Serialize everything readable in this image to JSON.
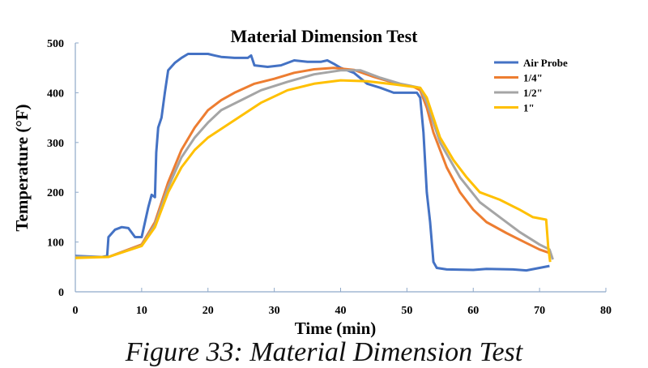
{
  "chart_data": {
    "type": "line",
    "title": "Material Dimension Test",
    "xlabel": "Time (min)",
    "ylabel": "Temperature (°F)",
    "xlim": [
      0,
      80
    ],
    "ylim": [
      0,
      500
    ],
    "xticks": [
      "0",
      "10",
      "20",
      "30",
      "40",
      "50",
      "60",
      "70",
      "80"
    ],
    "yticks": [
      "0",
      "100",
      "200",
      "300",
      "400",
      "500"
    ],
    "grid": false,
    "legend_position": "top-right",
    "series": [
      {
        "name": "Air Probe",
        "color": "#4472c4",
        "points": [
          [
            0,
            72
          ],
          [
            4,
            70
          ],
          [
            4.8,
            72
          ],
          [
            5,
            110
          ],
          [
            6,
            125
          ],
          [
            7,
            130
          ],
          [
            8,
            128
          ],
          [
            9,
            110
          ],
          [
            10,
            110
          ],
          [
            11,
            170
          ],
          [
            11.5,
            195
          ],
          [
            12,
            190
          ],
          [
            12.2,
            280
          ],
          [
            12.5,
            330
          ],
          [
            13,
            350
          ],
          [
            13.5,
            400
          ],
          [
            14,
            445
          ],
          [
            15,
            460
          ],
          [
            16,
            470
          ],
          [
            17,
            478
          ],
          [
            20,
            478
          ],
          [
            21,
            475
          ],
          [
            22,
            472
          ],
          [
            24,
            470
          ],
          [
            26,
            470
          ],
          [
            26.5,
            475
          ],
          [
            27,
            455
          ],
          [
            29,
            452
          ],
          [
            31,
            455
          ],
          [
            33,
            465
          ],
          [
            35,
            462
          ],
          [
            37,
            462
          ],
          [
            38,
            465
          ],
          [
            39,
            458
          ],
          [
            40,
            450
          ],
          [
            42,
            440
          ],
          [
            44,
            418
          ],
          [
            46,
            410
          ],
          [
            48,
            400
          ],
          [
            50,
            400
          ],
          [
            51.5,
            400
          ],
          [
            52,
            390
          ],
          [
            52.5,
            320
          ],
          [
            53,
            200
          ],
          [
            53.5,
            140
          ],
          [
            54,
            60
          ],
          [
            54.5,
            48
          ],
          [
            56,
            45
          ],
          [
            60,
            44
          ],
          [
            62,
            46
          ],
          [
            66,
            45
          ],
          [
            68,
            43
          ],
          [
            70,
            48
          ],
          [
            71.5,
            52
          ]
        ]
      },
      {
        "name": "1/4\"",
        "color": "#ed7d31",
        "points": [
          [
            0,
            70
          ],
          [
            5,
            70
          ],
          [
            10,
            95
          ],
          [
            12,
            140
          ],
          [
            14,
            220
          ],
          [
            16,
            285
          ],
          [
            18,
            330
          ],
          [
            20,
            365
          ],
          [
            22,
            385
          ],
          [
            24,
            400
          ],
          [
            27,
            418
          ],
          [
            30,
            428
          ],
          [
            33,
            440
          ],
          [
            36,
            447
          ],
          [
            39,
            450
          ],
          [
            42,
            446
          ],
          [
            45,
            432
          ],
          [
            48,
            420
          ],
          [
            51,
            412
          ],
          [
            52,
            405
          ],
          [
            53,
            370
          ],
          [
            54,
            320
          ],
          [
            56,
            250
          ],
          [
            58,
            200
          ],
          [
            60,
            165
          ],
          [
            62,
            140
          ],
          [
            65,
            118
          ],
          [
            68,
            98
          ],
          [
            70,
            85
          ],
          [
            71.5,
            78
          ]
        ]
      },
      {
        "name": "1/2\"",
        "color": "#a5a5a5",
        "points": [
          [
            0,
            70
          ],
          [
            5,
            70
          ],
          [
            10,
            93
          ],
          [
            12,
            135
          ],
          [
            14,
            210
          ],
          [
            16,
            270
          ],
          [
            18,
            310
          ],
          [
            20,
            340
          ],
          [
            22,
            365
          ],
          [
            25,
            385
          ],
          [
            28,
            405
          ],
          [
            32,
            422
          ],
          [
            36,
            437
          ],
          [
            40,
            445
          ],
          [
            43,
            445
          ],
          [
            46,
            430
          ],
          [
            49,
            418
          ],
          [
            52,
            410
          ],
          [
            53,
            380
          ],
          [
            55,
            300
          ],
          [
            58,
            230
          ],
          [
            61,
            180
          ],
          [
            64,
            150
          ],
          [
            67,
            120
          ],
          [
            70,
            95
          ],
          [
            71.5,
            85
          ],
          [
            72,
            65
          ]
        ]
      },
      {
        "name": "1\"",
        "color": "#ffc000",
        "points": [
          [
            0,
            68
          ],
          [
            5,
            70
          ],
          [
            10,
            92
          ],
          [
            12,
            130
          ],
          [
            14,
            200
          ],
          [
            16,
            250
          ],
          [
            18,
            285
          ],
          [
            20,
            310
          ],
          [
            24,
            345
          ],
          [
            28,
            380
          ],
          [
            32,
            405
          ],
          [
            36,
            418
          ],
          [
            40,
            425
          ],
          [
            44,
            423
          ],
          [
            48,
            417
          ],
          [
            52,
            410
          ],
          [
            53,
            390
          ],
          [
            55,
            310
          ],
          [
            57,
            265
          ],
          [
            59,
            230
          ],
          [
            61,
            200
          ],
          [
            64,
            185
          ],
          [
            67,
            165
          ],
          [
            69,
            150
          ],
          [
            71,
            145
          ],
          [
            71.3,
            90
          ],
          [
            71.6,
            60
          ]
        ]
      }
    ]
  },
  "caption": "Figure 33: Material Dimension Test"
}
